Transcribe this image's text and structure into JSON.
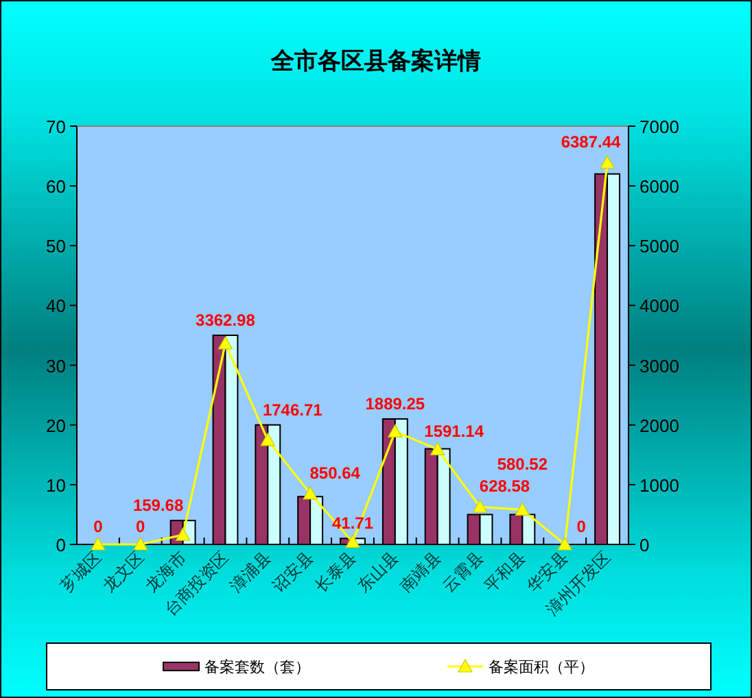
{
  "chart_data": {
    "type": "bar",
    "title": "全市各区县备案详情",
    "categories": [
      "芗城区",
      "龙文区",
      "龙海市",
      "台商投资区",
      "漳浦县",
      "诏安县",
      "长泰县",
      "东山县",
      "南靖县",
      "云霄县",
      "平和县",
      "华安县",
      "漳州开发区"
    ],
    "ylim": [
      0,
      70
    ],
    "yticks": [
      0,
      10,
      20,
      30,
      40,
      50,
      60,
      70
    ],
    "y2lim": [
      0,
      7000
    ],
    "y2ticks": [
      0,
      1000,
      2000,
      3000,
      4000,
      5000,
      6000,
      7000
    ],
    "series": [
      {
        "name": "备案套数（套）",
        "color": "#993366",
        "values": [
          0,
          0,
          4,
          35,
          20,
          8,
          1,
          21,
          16,
          5,
          5,
          0,
          62
        ]
      },
      {
        "color": "#ccffff",
        "values": [
          0,
          0,
          4,
          35,
          20,
          8,
          1,
          21,
          16,
          5,
          5,
          0,
          62
        ]
      },
      {
        "name": "备案面积（平）",
        "type": "line",
        "axis": "y2",
        "color": "#ffff00",
        "values": [
          0,
          0,
          159.68,
          3362.98,
          1746.71,
          850.64,
          41.71,
          1889.25,
          1591.14,
          628.58,
          580.52,
          0,
          6387.44
        ],
        "value_labels": [
          "0",
          "0",
          "159.68",
          "3362.98",
          "1746.71",
          "850.64",
          "41.71",
          "1889.25",
          "1591.14",
          "628.58",
          "580.52",
          "0",
          "6387.44"
        ]
      }
    ],
    "marker": "triangle",
    "legend": "bottom"
  }
}
